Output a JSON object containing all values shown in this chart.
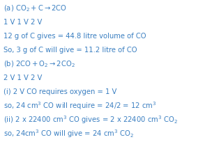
{
  "background_color": "#ffffff",
  "text_color": "#3a7fc1",
  "figsize": [
    3.04,
    2.04
  ],
  "dpi": 100,
  "font_size": 7.2,
  "lines": [
    "(a) $\\mathrm{CO_2 + C \\rightarrow 2CO}$",
    "1 V 1 V 2 V",
    "12 g of C gives = 44.8 litre volume of CO",
    "So, 3 g of C will give = 11.2 litre of CO",
    "(b) $\\mathrm{2CO + O_2 \\rightarrow 2CO_2}$",
    "2 V 1 V 2 V",
    "(i) 2 V CO requires oxygen = 1 V",
    "so, 24 cm$^3$ CO will require = 24/2 = 12 cm$^3$",
    "(ii) 2 x 22400 cm$^3$ CO gives = 2 x 22400 cm$^3$ $\\mathrm{CO_2}$",
    "so, 24cm$^3$ CO will give = 24 cm$^3$ $\\mathrm{CO_2}$"
  ]
}
